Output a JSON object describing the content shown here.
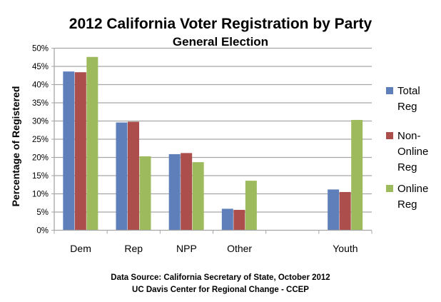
{
  "chart_data": {
    "type": "bar",
    "title": "2012 California Voter Registration by Party",
    "subtitle": "General Election",
    "xlabel": "",
    "ylabel": "Percentage of Registered",
    "ylim": [
      0,
      50
    ],
    "ytick_step": 5,
    "yticks": [
      "0%",
      "5%",
      "10%",
      "15%",
      "20%",
      "25%",
      "30%",
      "35%",
      "40%",
      "45%",
      "50%"
    ],
    "grid": true,
    "legend_position": "right",
    "categories": [
      "Dem",
      "Rep",
      "NPP",
      "Other",
      "",
      "Youth"
    ],
    "series": [
      {
        "name": "Total Reg",
        "legend_lines": [
          "Total",
          "Reg"
        ],
        "color": "#5E7FBA",
        "values": [
          43.6,
          29.6,
          20.9,
          5.9,
          null,
          11.2
        ]
      },
      {
        "name": "Non-Online Reg",
        "legend_lines": [
          "Non-",
          "Online",
          "Reg"
        ],
        "color": "#AB4E4C",
        "values": [
          43.4,
          29.8,
          21.2,
          5.6,
          null,
          10.5
        ]
      },
      {
        "name": "Online Reg",
        "legend_lines": [
          "Online",
          "Reg"
        ],
        "color": "#9DBA5C",
        "values": [
          47.6,
          20.3,
          18.7,
          13.6,
          null,
          30.3
        ]
      }
    ],
    "footnotes": [
      "Data Source: California Secretary of State, October 2012",
      "UC Davis Center for Regional Change - CCEP"
    ]
  }
}
